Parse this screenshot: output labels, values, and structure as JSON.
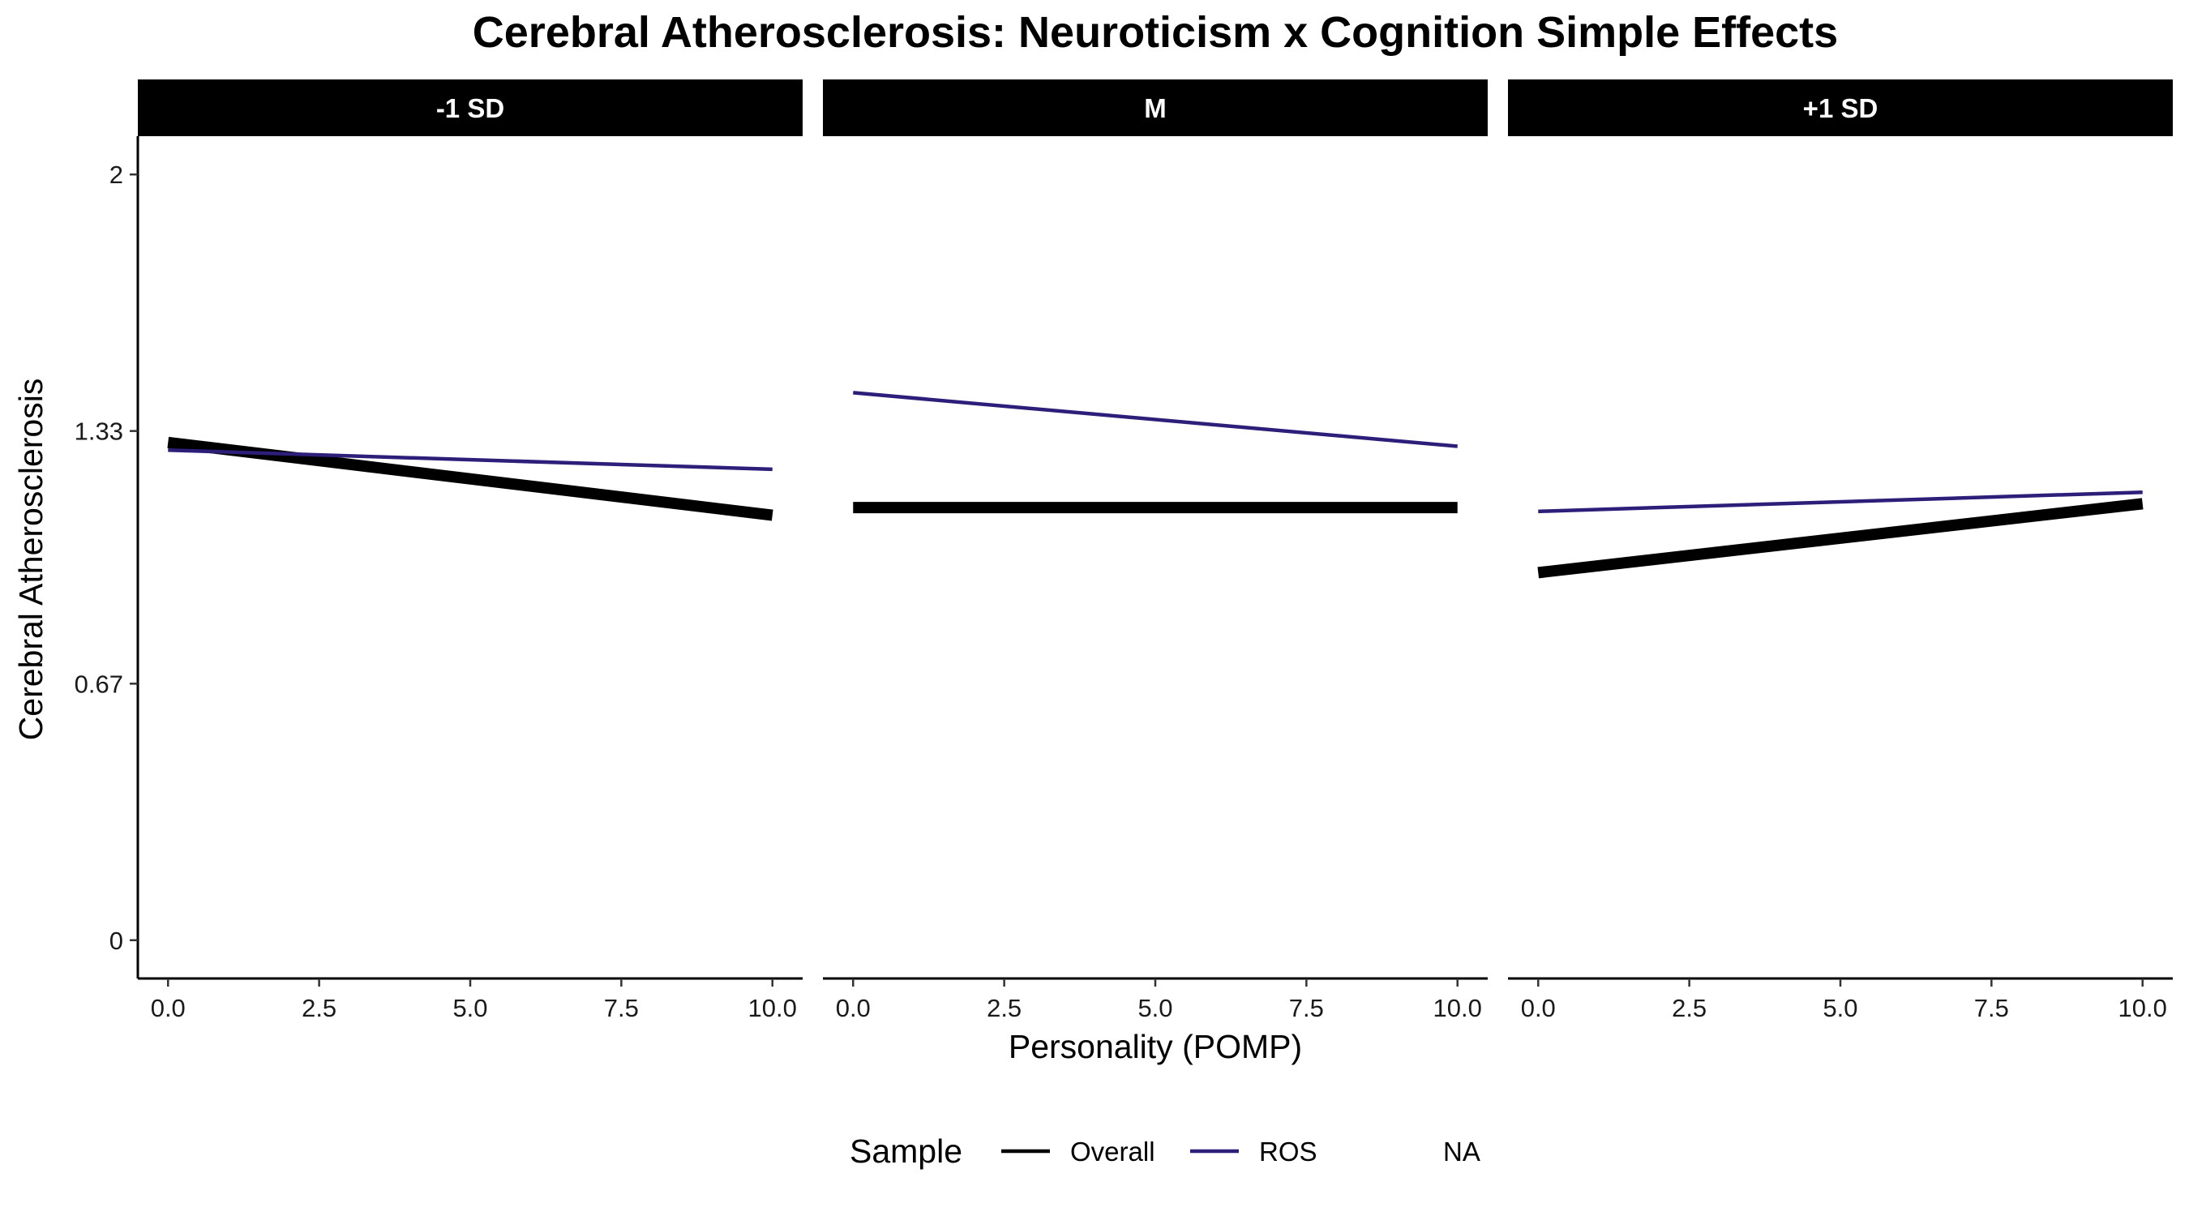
{
  "chart_data": {
    "type": "line",
    "title": "Cerebral Atherosclerosis: Neuroticism x Cognition Simple Effects",
    "xlabel": "Personality (POMP)",
    "ylabel": "Cerebral Atherosclerosis",
    "xlim": [
      -0.5,
      10.5
    ],
    "ylim": [
      -0.1,
      2.1
    ],
    "x_ticks": [
      0,
      2.5,
      5,
      7.5,
      10
    ],
    "x_tick_labels": [
      "0.0",
      "2.5",
      "5.0",
      "7.5",
      "10.0"
    ],
    "y_ticks": [
      0,
      0.67,
      1.33,
      2
    ],
    "y_tick_labels": [
      "0",
      "0.67",
      "1.33",
      "2"
    ],
    "grid": false,
    "legend": {
      "title": "Sample",
      "position": "bottom",
      "entries": [
        {
          "label": "Overall",
          "color": "#000000"
        },
        {
          "label": "ROS",
          "color": "#2d1e7a"
        },
        {
          "label": "NA",
          "color": null
        }
      ]
    },
    "series_style": {
      "Overall": {
        "color": "#000000",
        "width": 14
      },
      "ROS": {
        "color": "#2d1e7a",
        "width": 4.5
      }
    },
    "panels": [
      {
        "label": "-1 SD",
        "series": [
          {
            "name": "Overall",
            "x": [
              0,
              10
            ],
            "y": [
              1.3,
              1.11
            ]
          },
          {
            "name": "ROS",
            "x": [
              0,
              10
            ],
            "y": [
              1.28,
              1.23
            ]
          }
        ]
      },
      {
        "label": "M",
        "series": [
          {
            "name": "Overall",
            "x": [
              0,
              10
            ],
            "y": [
              1.13,
              1.13
            ]
          },
          {
            "name": "ROS",
            "x": [
              0,
              10
            ],
            "y": [
              1.43,
              1.29
            ]
          }
        ]
      },
      {
        "label": "+1 SD",
        "series": [
          {
            "name": "Overall",
            "x": [
              0,
              10
            ],
            "y": [
              0.96,
              1.14
            ]
          },
          {
            "name": "ROS",
            "x": [
              0,
              10
            ],
            "y": [
              1.12,
              1.17
            ]
          }
        ]
      }
    ]
  }
}
